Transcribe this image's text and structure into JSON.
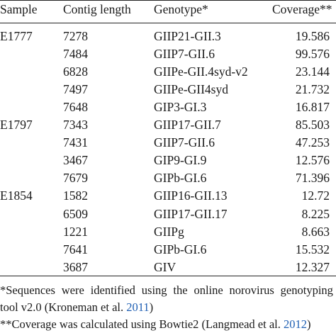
{
  "table": {
    "headers": {
      "sample": "Sample",
      "contig": "Contig length",
      "genotype": "Genotype*",
      "coverage": "Coverage**"
    },
    "rows": [
      {
        "sample": "E1777",
        "contig": "7278",
        "genotype": "GIIP21-GII.3",
        "coverage": "19.586"
      },
      {
        "sample": "",
        "contig": "7484",
        "genotype": "GIIP7-GII.6",
        "coverage": "99.576"
      },
      {
        "sample": "",
        "contig": "6828",
        "genotype": "GIIPe-GII.4syd-v2",
        "coverage": "23.144"
      },
      {
        "sample": "",
        "contig": "7497",
        "genotype": "GIIPe-GII4syd",
        "coverage": "21.732"
      },
      {
        "sample": "",
        "contig": "7648",
        "genotype": "GIP3-GI.3",
        "coverage": "16.817"
      },
      {
        "sample": "E1797",
        "contig": "7343",
        "genotype": "GIIP17-GII.7",
        "coverage": "85.503"
      },
      {
        "sample": "",
        "contig": "7431",
        "genotype": "GIIP7-GII.6",
        "coverage": "47.253"
      },
      {
        "sample": "",
        "contig": "3467",
        "genotype": "GIP9-GI.9",
        "coverage": "12.576"
      },
      {
        "sample": "",
        "contig": "7679",
        "genotype": "GIPb-GI.6",
        "coverage": "71.396"
      },
      {
        "sample": "E1854",
        "contig": "1582",
        "genotype": "GIIP16-GII.13",
        "coverage": "12.72"
      },
      {
        "sample": "",
        "contig": "6509",
        "genotype": "GIIP17-GII.17",
        "coverage": "8.225"
      },
      {
        "sample": "",
        "contig": "1221",
        "genotype": "GIIPg",
        "coverage": "8.663"
      },
      {
        "sample": "",
        "contig": "7641",
        "genotype": "GIPb-GI.6",
        "coverage": "15.532"
      },
      {
        "sample": "",
        "contig": "3687",
        "genotype": "GIV",
        "coverage": "12.327"
      }
    ]
  },
  "footnotes": {
    "note1_words": [
      "*Sequences",
      "were",
      "identified",
      "using",
      "the",
      "online",
      "norovirus",
      "genotyping"
    ],
    "note1_line2_prefix": "tool v2.0 (Kroneman et al. ",
    "note1_line2_year": "2011",
    "note1_line2_suffix": ")",
    "note2_prefix": "**Coverage was calculated using Bowtie2 (Langmead et al. ",
    "note2_year": "2012",
    "note2_suffix": ")"
  },
  "colors": {
    "text": "#1a1a1a",
    "rule": "#222222",
    "citation_link": "#1f5fb3"
  }
}
